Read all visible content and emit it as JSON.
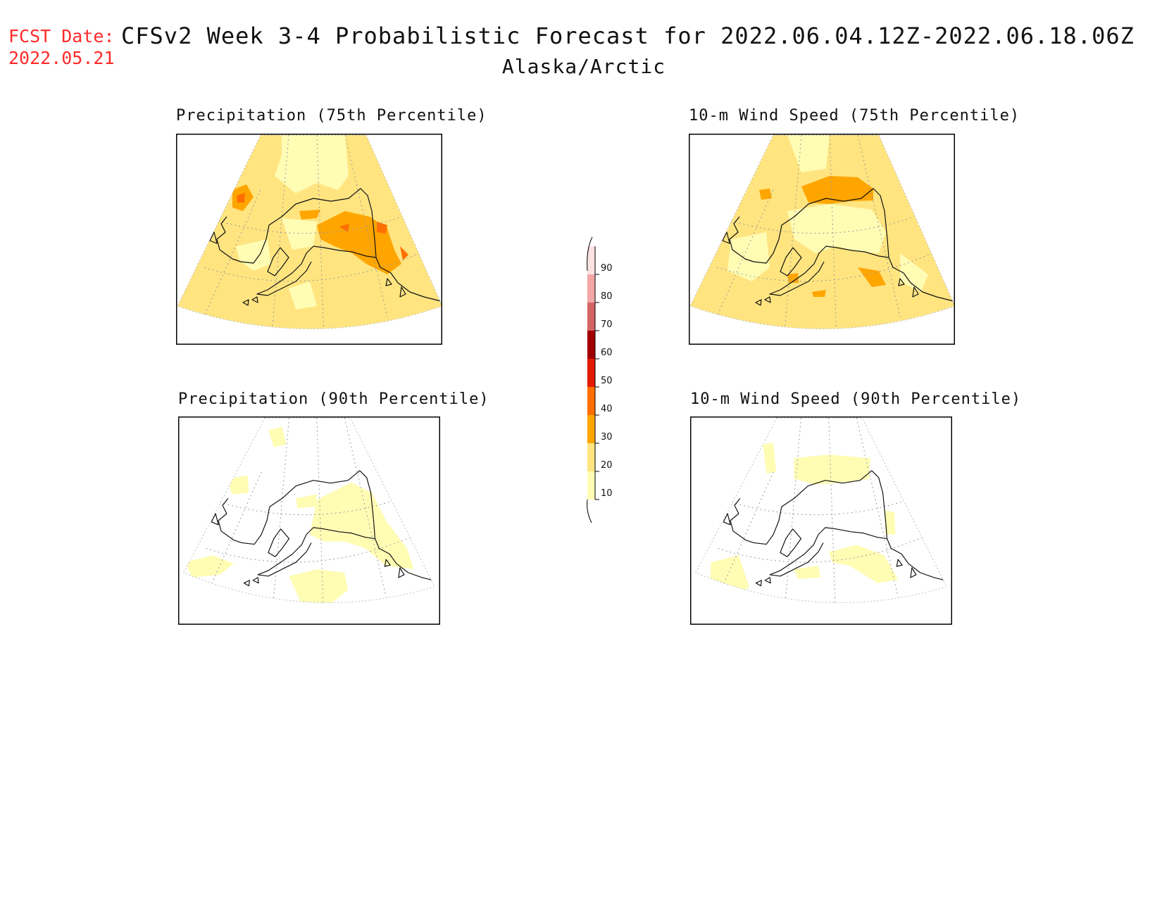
{
  "header": {
    "fcst_date_label": "FCST Date:",
    "fcst_date_value": "2022.05.21",
    "title": "CFSv2 Week 3-4 Probabilistic Forecast for 2022.06.04.12Z-2022.06.18.06Z",
    "region": "Alaska/Arctic"
  },
  "panels": [
    {
      "title": "Precipitation (75th Percentile)",
      "fill": "heavy"
    },
    {
      "title": "10-m Wind Speed (75th Percentile)",
      "fill": "heavy"
    },
    {
      "title": "Precipitation (90th Percentile)",
      "fill": "light"
    },
    {
      "title": "10-m Wind Speed (90th Percentile)",
      "fill": "light"
    }
  ],
  "colorbar": {
    "levels": [
      "10",
      "20",
      "30",
      "40",
      "50",
      "60",
      "70",
      "80",
      "90"
    ],
    "colors": {
      "c10": "#fffcb4",
      "c20": "#ffe480",
      "c30": "#ffa500",
      "c40": "#ff6e00",
      "c50": "#e21b00",
      "c60": "#a00000",
      "c70": "#d46464",
      "c80": "#f2a6a6",
      "c90": "#fde2e2"
    }
  }
}
